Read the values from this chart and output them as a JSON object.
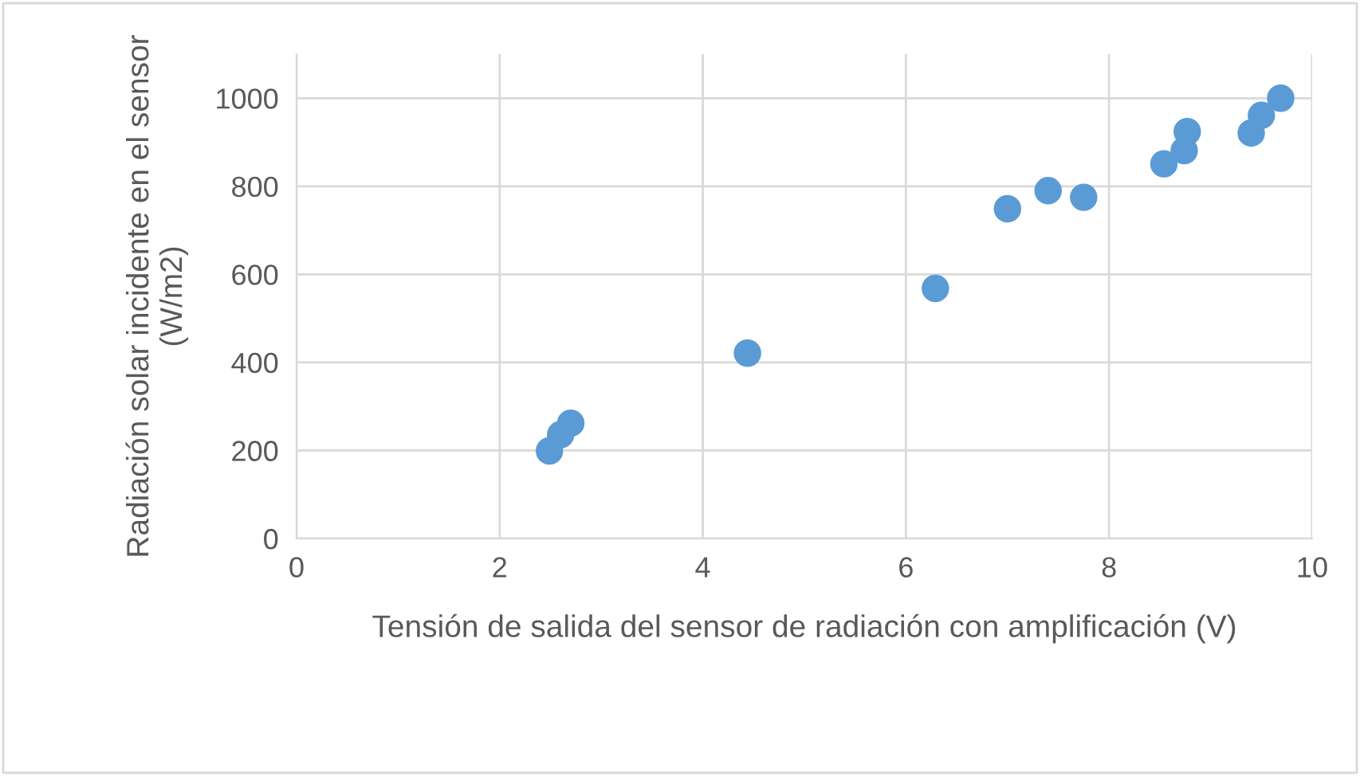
{
  "chart_data": {
    "type": "scatter",
    "xlabel": "Tensión de salida del sensor de radiación con amplificación (V)",
    "ylabel": "Radiación solar incidente en el sensor (W/m2)",
    "x": [
      2.49,
      2.6,
      2.7,
      4.44,
      6.29,
      7.0,
      7.4,
      7.75,
      8.54,
      8.74,
      8.77,
      9.4,
      9.5,
      9.69
    ],
    "series": [
      {
        "color": "#5b9bd5",
        "values": [
          199,
          236,
          262,
          421,
          568,
          749,
          790,
          775,
          851,
          881,
          924,
          921,
          961,
          1000
        ]
      }
    ],
    "xlim": [
      0,
      10
    ],
    "xticks": [
      0,
      2,
      4,
      6,
      8,
      10
    ],
    "ylim": [
      0,
      1100
    ],
    "yticks": [
      0,
      200,
      400,
      600,
      800,
      1000
    ],
    "grid": true,
    "marker": "circle"
  }
}
